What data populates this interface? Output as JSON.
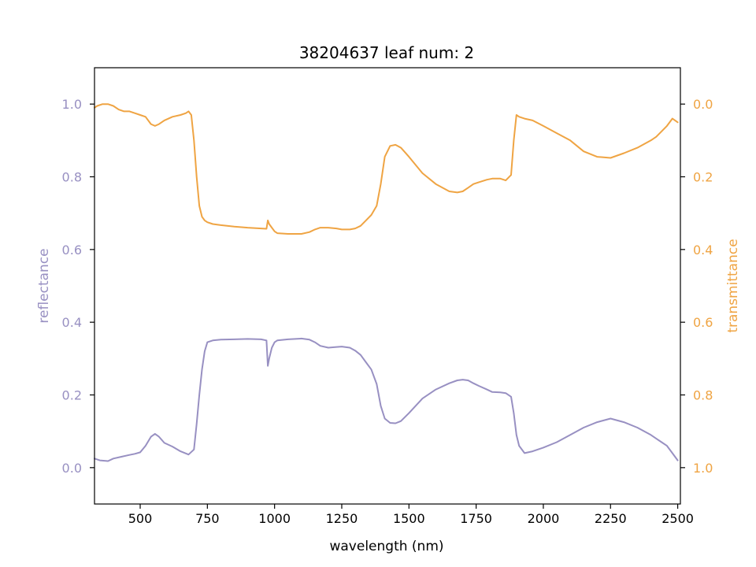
{
  "chart_data": {
    "type": "line",
    "title": "38204637 leaf num: 2",
    "xlabel": "wavelength (nm)",
    "ylabel_left": "reflectance",
    "ylabel_right": "transmittance",
    "xlim": [
      330,
      2510
    ],
    "ylim_left": [
      -0.1,
      1.1
    ],
    "ylim_right": [
      1.1,
      -0.1
    ],
    "right_axis_inverted": true,
    "grid": false,
    "x_ticks": [
      500,
      750,
      1000,
      1250,
      1500,
      1750,
      2000,
      2250,
      2500
    ],
    "x_tick_labels": [
      "500",
      "750",
      "1000",
      "1250",
      "1500",
      "1750",
      "2000",
      "2250",
      "2500"
    ],
    "y_left_ticks": [
      0.0,
      0.2,
      0.4,
      0.6,
      0.8,
      1.0
    ],
    "y_left_tick_labels": [
      "0.0",
      "0.2",
      "0.4",
      "0.6",
      "0.8",
      "1.0"
    ],
    "y_right_ticks": [
      0.0,
      0.2,
      0.4,
      0.6,
      0.8,
      1.0
    ],
    "y_right_tick_labels": [
      "0.0",
      "0.2",
      "0.4",
      "0.6",
      "0.8",
      "1.0"
    ],
    "colors": {
      "reflectance": "#9890c2",
      "transmittance": "#efa443",
      "axes": "#000000"
    },
    "series": [
      {
        "axis": "left",
        "color": "#9890c2",
        "x": [
          330,
          350,
          380,
          400,
          430,
          460,
          480,
          500,
          520,
          540,
          555,
          570,
          590,
          620,
          650,
          680,
          700,
          710,
          720,
          730,
          740,
          750,
          770,
          800,
          850,
          900,
          950,
          970,
          975,
          980,
          990,
          1000,
          1010,
          1050,
          1100,
          1130,
          1150,
          1170,
          1200,
          1230,
          1250,
          1280,
          1300,
          1320,
          1340,
          1360,
          1380,
          1395,
          1410,
          1430,
          1450,
          1470,
          1500,
          1550,
          1600,
          1650,
          1680,
          1700,
          1720,
          1740,
          1760,
          1790,
          1810,
          1840,
          1860,
          1880,
          1890,
          1900,
          1910,
          1930,
          1960,
          2000,
          2050,
          2100,
          2150,
          2200,
          2250,
          2300,
          2350,
          2400,
          2420,
          2440,
          2460,
          2480,
          2500
        ],
        "y": [
          0.025,
          0.02,
          0.018,
          0.025,
          0.03,
          0.035,
          0.038,
          0.042,
          0.06,
          0.085,
          0.093,
          0.085,
          0.068,
          0.058,
          0.045,
          0.036,
          0.05,
          0.12,
          0.2,
          0.27,
          0.32,
          0.345,
          0.35,
          0.352,
          0.353,
          0.354,
          0.353,
          0.35,
          0.28,
          0.3,
          0.33,
          0.345,
          0.35,
          0.353,
          0.355,
          0.352,
          0.345,
          0.335,
          0.33,
          0.332,
          0.333,
          0.33,
          0.322,
          0.31,
          0.29,
          0.27,
          0.23,
          0.17,
          0.135,
          0.123,
          0.122,
          0.128,
          0.15,
          0.19,
          0.215,
          0.232,
          0.24,
          0.242,
          0.24,
          0.232,
          0.225,
          0.215,
          0.208,
          0.207,
          0.205,
          0.195,
          0.15,
          0.09,
          0.06,
          0.04,
          0.045,
          0.055,
          0.07,
          0.09,
          0.11,
          0.125,
          0.135,
          0.125,
          0.11,
          0.09,
          0.08,
          0.07,
          0.06,
          0.04,
          0.02
        ]
      },
      {
        "axis": "right",
        "color": "#efa443",
        "x": [
          330,
          340,
          360,
          380,
          400,
          420,
          440,
          460,
          480,
          500,
          520,
          540,
          555,
          570,
          590,
          620,
          650,
          670,
          680,
          690,
          700,
          710,
          720,
          730,
          740,
          750,
          770,
          800,
          850,
          900,
          950,
          970,
          975,
          980,
          990,
          1000,
          1010,
          1050,
          1100,
          1130,
          1150,
          1170,
          1200,
          1230,
          1250,
          1280,
          1300,
          1320,
          1340,
          1360,
          1380,
          1395,
          1410,
          1430,
          1450,
          1470,
          1500,
          1550,
          1600,
          1650,
          1680,
          1700,
          1720,
          1740,
          1760,
          1790,
          1810,
          1840,
          1860,
          1880,
          1890,
          1900,
          1910,
          1930,
          1960,
          2000,
          2050,
          2100,
          2150,
          2200,
          2250,
          2300,
          2350,
          2400,
          2420,
          2440,
          2460,
          2480,
          2500
        ],
        "y": [
          0.01,
          0.005,
          0.0,
          0.0,
          0.005,
          0.015,
          0.02,
          0.02,
          0.025,
          0.03,
          0.035,
          0.055,
          0.06,
          0.055,
          0.045,
          0.035,
          0.03,
          0.025,
          0.02,
          0.03,
          0.1,
          0.2,
          0.28,
          0.31,
          0.32,
          0.325,
          0.33,
          0.333,
          0.337,
          0.34,
          0.342,
          0.343,
          0.32,
          0.33,
          0.34,
          0.35,
          0.355,
          0.357,
          0.357,
          0.352,
          0.345,
          0.34,
          0.34,
          0.342,
          0.345,
          0.345,
          0.342,
          0.335,
          0.32,
          0.305,
          0.28,
          0.22,
          0.145,
          0.115,
          0.112,
          0.12,
          0.145,
          0.19,
          0.22,
          0.24,
          0.243,
          0.24,
          0.23,
          0.22,
          0.215,
          0.208,
          0.205,
          0.205,
          0.21,
          0.195,
          0.1,
          0.03,
          0.035,
          0.04,
          0.045,
          0.06,
          0.08,
          0.1,
          0.13,
          0.145,
          0.148,
          0.135,
          0.12,
          0.1,
          0.09,
          0.075,
          0.06,
          0.04,
          0.05
        ]
      }
    ]
  }
}
